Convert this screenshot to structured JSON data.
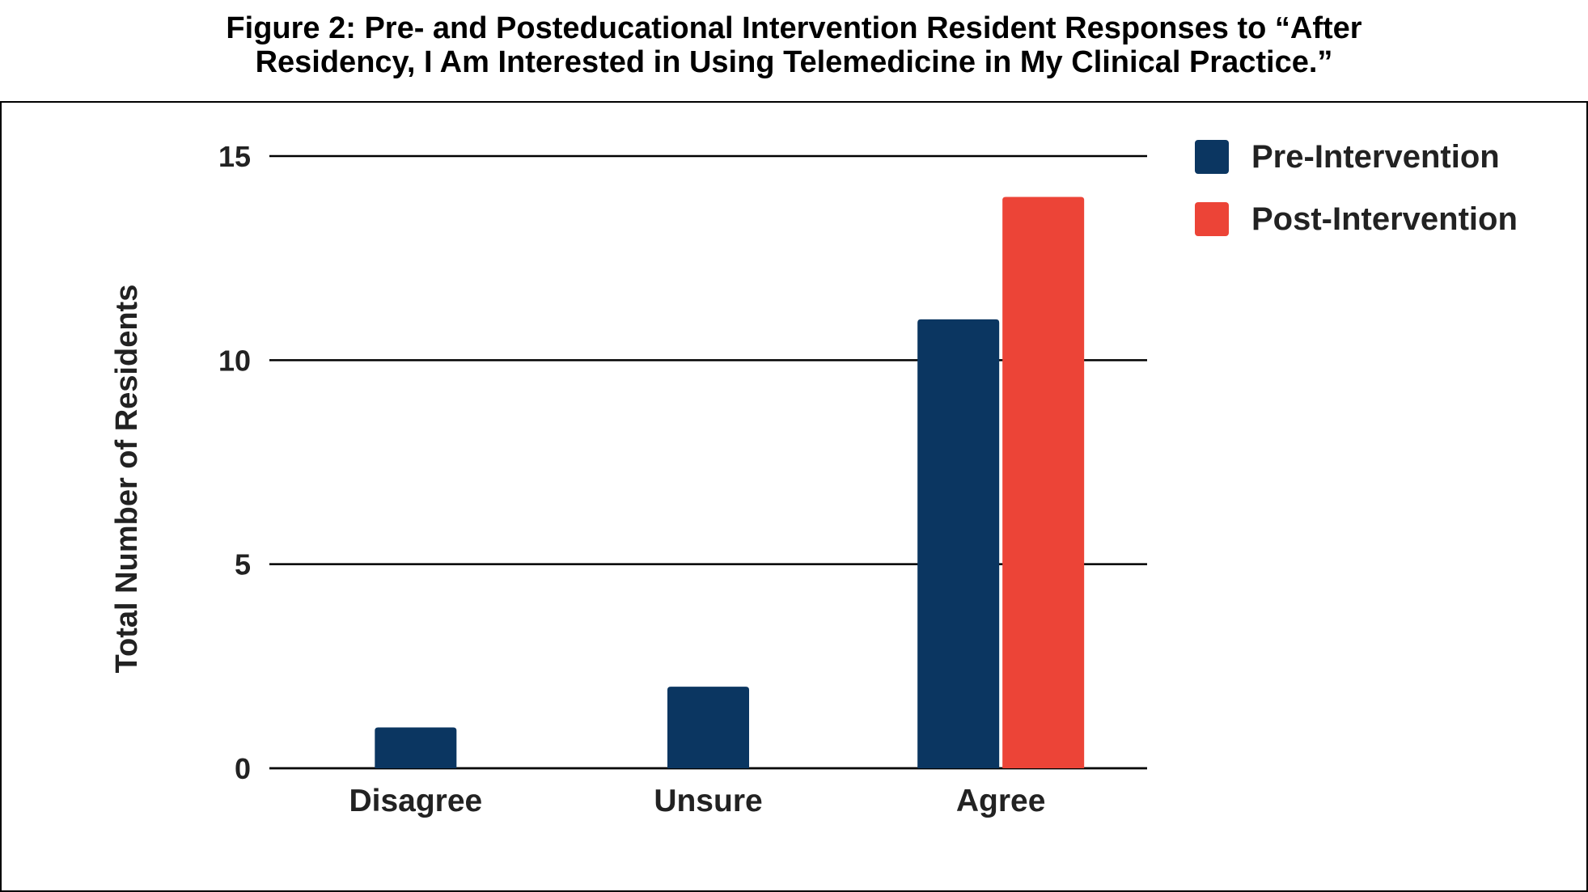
{
  "chart_data": {
    "type": "bar",
    "title_lines": [
      "Figure 2: Pre- and Posteducational Intervention Resident Responses to “After",
      "Residency, I Am Interested in Using Telemedicine in My Clinical Practice.”"
    ],
    "xlabel": "",
    "ylabel": "Total Number of Residents",
    "ylim": [
      0,
      15
    ],
    "yticks": [
      0,
      5,
      10,
      15
    ],
    "grid": true,
    "legend_position": "right",
    "categories": [
      "Disagree",
      "Unsure",
      "Agree"
    ],
    "series": [
      {
        "name": "Pre-Intervention",
        "color": "#0b3661",
        "values": [
          1,
          2,
          11
        ]
      },
      {
        "name": "Post-Intervention",
        "color": "#ec4437",
        "values": [
          0,
          0,
          14
        ]
      }
    ]
  }
}
